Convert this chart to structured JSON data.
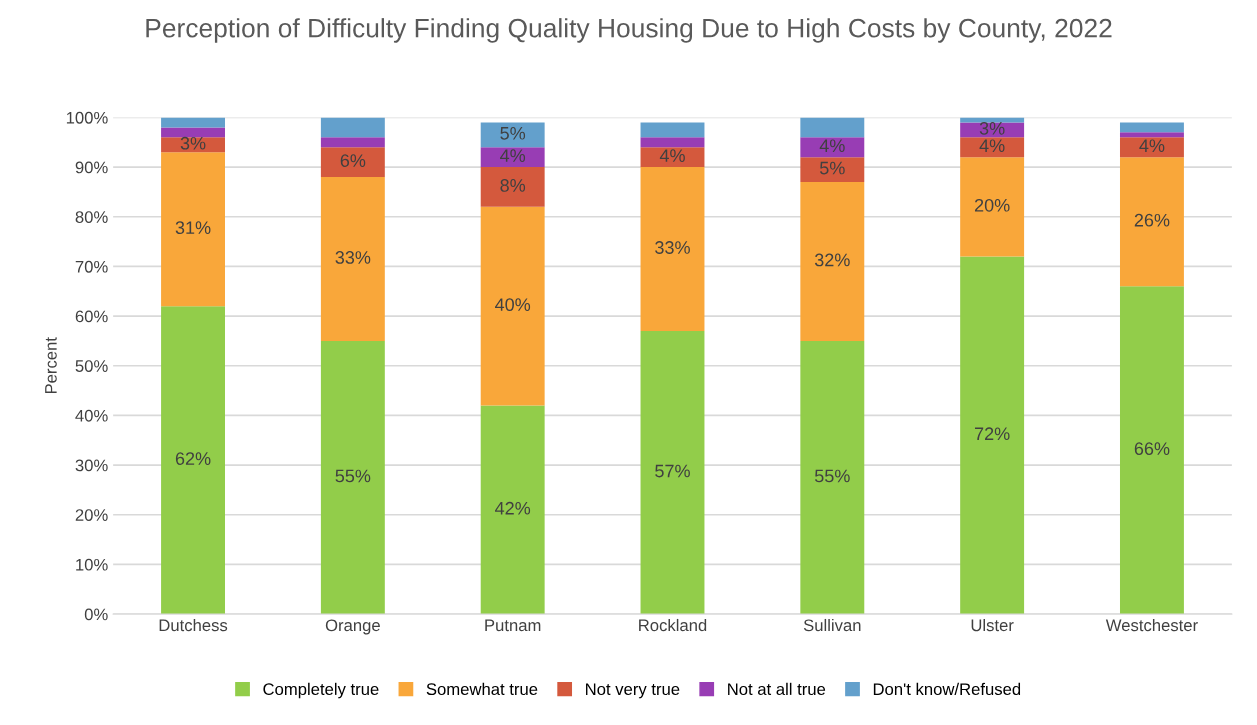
{
  "chart_data": {
    "type": "bar",
    "stacked": true,
    "title": "Perception of Difficulty Finding Quality Housing Due to High Costs by County, 2022",
    "ylabel": "Percent",
    "categories": [
      "Dutchess",
      "Orange",
      "Putnam",
      "Rockland",
      "Sullivan",
      "Ulster",
      "Westchester"
    ],
    "series": [
      {
        "name": "Completely true",
        "color": "#92cd4a",
        "values": [
          62,
          55,
          42,
          57,
          55,
          72,
          66
        ],
        "value_labels": [
          "62%",
          "55%",
          "42%",
          "57%",
          "55%",
          "72%",
          "66%"
        ]
      },
      {
        "name": "Somewhat true",
        "color": "#f9a73a",
        "values": [
          31,
          33,
          40,
          33,
          32,
          20,
          26
        ],
        "value_labels": [
          "31%",
          "33%",
          "40%",
          "33%",
          "32%",
          "20%",
          "26%"
        ]
      },
      {
        "name": "Not very true",
        "color": "#d4593d",
        "values": [
          3,
          6,
          8,
          4,
          5,
          4,
          4
        ],
        "value_labels": [
          "3%",
          "6%",
          "8%",
          "4%",
          "5%",
          "4%",
          "4%"
        ]
      },
      {
        "name": "Not at all true",
        "color": "#983db4",
        "values": [
          2,
          2,
          4,
          2,
          4,
          3,
          1
        ],
        "value_labels": [
          null,
          null,
          "4%",
          null,
          "4%",
          "3%",
          null
        ]
      },
      {
        "name": "Don't know/Refused",
        "color": "#63a0cc",
        "values": [
          2,
          4,
          5,
          3,
          4,
          1,
          2
        ],
        "value_labels": [
          null,
          null,
          "5%",
          null,
          null,
          null,
          null
        ]
      }
    ],
    "ylim": [
      0,
      100
    ],
    "yticks": [
      {
        "value": 0,
        "label": "0%"
      },
      {
        "value": 10,
        "label": "10%"
      },
      {
        "value": 20,
        "label": "20%"
      },
      {
        "value": 30,
        "label": "30%"
      },
      {
        "value": 40,
        "label": "40%"
      },
      {
        "value": 50,
        "label": "50%"
      },
      {
        "value": 60,
        "label": "60%"
      },
      {
        "value": 70,
        "label": "70%"
      },
      {
        "value": 80,
        "label": "80%"
      },
      {
        "value": 90,
        "label": "90%"
      },
      {
        "value": 100,
        "label": "100%"
      }
    ],
    "grid": "y",
    "legend": "bottom"
  }
}
